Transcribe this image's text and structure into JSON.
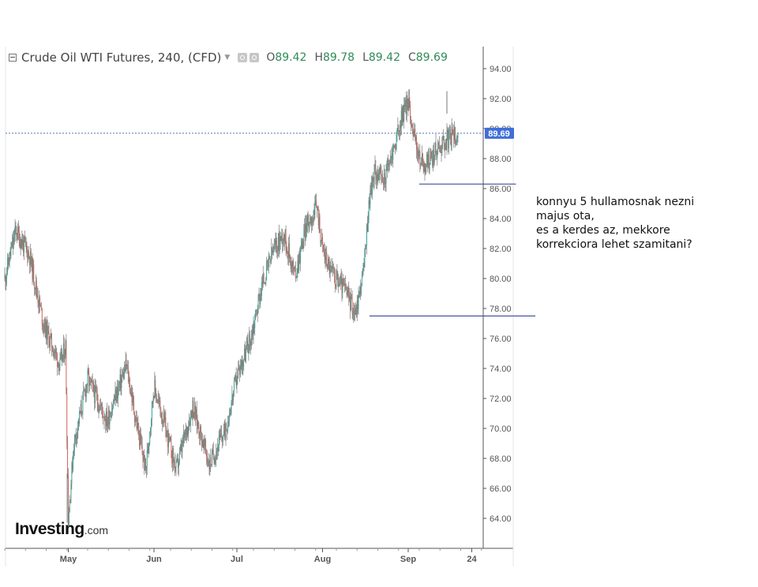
{
  "header": {
    "title": "Crude Oil WTI Futures, 240, (CFD)",
    "ohlc": [
      {
        "key": "O",
        "value": "89.42"
      },
      {
        "key": "H",
        "value": "89.78"
      },
      {
        "key": "L",
        "value": "89.42"
      },
      {
        "key": "C",
        "value": "89.69"
      }
    ]
  },
  "price_tag": "89.69",
  "note": {
    "lines": [
      "konnyu 5 hullamosnak nezni",
      "majus ota,",
      "es a kerdes az, mekkore",
      "korrekciora lehet szamitani?"
    ]
  },
  "logo": {
    "brand": "Investing",
    "domain": ".com"
  },
  "colors": {
    "up": "#26a69a",
    "down": "#e05a4f",
    "wick": "#777777",
    "price_tag_bg": "#3f6fd8",
    "level_line": "#2b3a8c"
  },
  "chart_data": {
    "type": "candlestick",
    "timeframe": "240",
    "y_ticks": [
      "64.00",
      "66.00",
      "68.00",
      "70.00",
      "72.00",
      "74.00",
      "76.00",
      "78.00",
      "80.00",
      "82.00",
      "84.00",
      "86.00",
      "88.00",
      "90.00",
      "92.00",
      "94.00"
    ],
    "ylim": [
      62,
      95
    ],
    "x_ticks": [
      {
        "label": "May",
        "day": 31
      },
      {
        "label": "Jun",
        "day": 62
      },
      {
        "label": "Jul",
        "day": 92
      },
      {
        "label": "Aug",
        "day": 123
      },
      {
        "label": "Sep",
        "day": 154
      },
      {
        "label": "24",
        "day": 177
      }
    ],
    "x_range_days": [
      8,
      186
    ],
    "last_price": 89.69,
    "horizontal_levels": [
      {
        "price": 77.5,
        "from_day": 140,
        "to_day": 200
      },
      {
        "price": 86.3,
        "from_day": 158,
        "to_day": 193
      }
    ],
    "path_days": [
      8,
      12,
      17,
      22,
      28,
      30,
      31,
      33,
      38,
      45,
      52,
      55,
      59,
      62,
      65,
      70,
      76,
      82,
      88,
      92,
      97,
      101,
      105,
      109,
      113,
      117,
      121,
      123,
      126,
      131,
      135,
      138,
      140,
      142,
      145,
      149,
      152,
      154,
      156,
      158,
      160,
      163,
      166,
      170,
      172
    ],
    "path_prices": [
      80,
      83.2,
      81.5,
      77,
      74.2,
      75.5,
      64,
      69,
      73.3,
      70.5,
      74.2,
      71,
      67.2,
      72.8,
      70.8,
      67.2,
      71.5,
      67.6,
      70,
      73.5,
      76,
      79.5,
      81.8,
      83,
      80.2,
      83.5,
      84.8,
      82,
      80.5,
      79.3,
      77.7,
      80.8,
      85.5,
      87.2,
      86.5,
      88.8,
      91,
      91.8,
      89.69,
      88,
      87.5,
      88.2,
      89,
      89.5,
      89.69
    ]
  }
}
